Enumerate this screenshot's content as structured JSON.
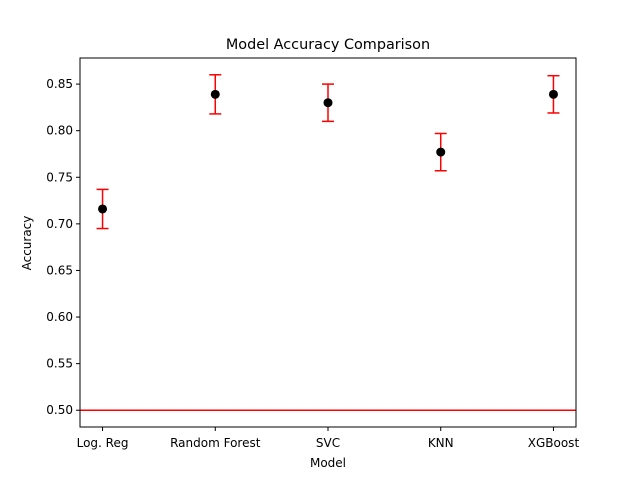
{
  "chart_data": {
    "type": "scatter",
    "title": "Model Accuracy Comparison",
    "xlabel": "Model",
    "ylabel": "Accuracy",
    "categories": [
      "Log. Reg",
      "Random Forest",
      "SVC",
      "KNN",
      "XGBoost"
    ],
    "series": [
      {
        "values": [
          0.716,
          0.839,
          0.83,
          0.777,
          0.839
        ],
        "error": [
          0.021,
          0.021,
          0.02,
          0.02,
          0.02
        ]
      }
    ],
    "reference_line": {
      "value": 0.5
    },
    "ylim": [
      0.482,
      0.878
    ],
    "yticks": [
      "0.50",
      "0.55",
      "0.60",
      "0.65",
      "0.70",
      "0.75",
      "0.80",
      "0.85"
    ],
    "grid": false,
    "legend": "none",
    "colors": {
      "point": "#000000",
      "error_bar": "#ff0000",
      "reference_line": "#ff0000",
      "axes": "#000000"
    }
  }
}
